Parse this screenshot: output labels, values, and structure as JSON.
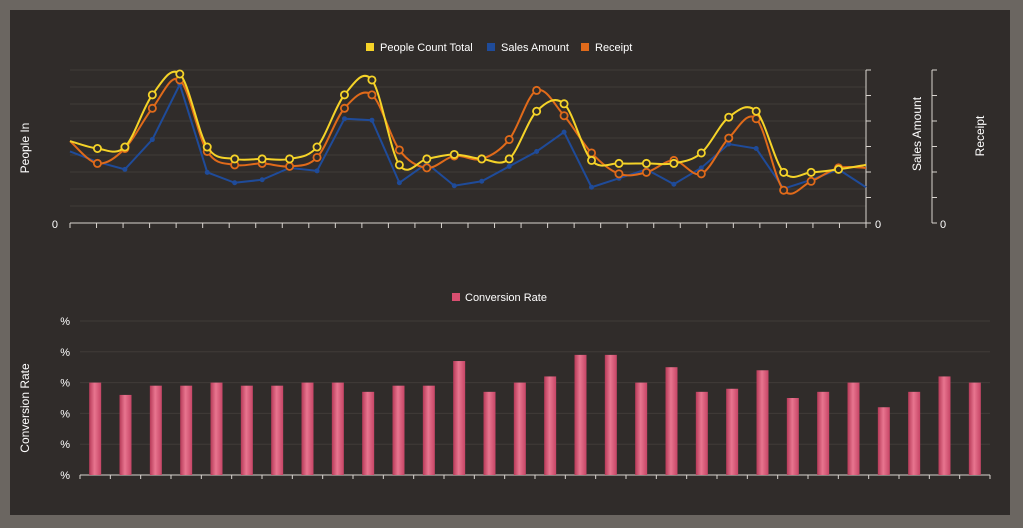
{
  "colors": {
    "background": "#302c2a",
    "frame": "#6b6661",
    "people": "#f5d328",
    "sales": "#1f4b99",
    "receipt": "#e06a1a",
    "conversion": "#d94f70"
  },
  "chart_data": [
    {
      "type": "line",
      "series": [
        {
          "name": "People Count Total",
          "color": "#f5d328",
          "values": [
            0.55,
            0.5,
            0.51,
            0.86,
            1.0,
            0.51,
            0.43,
            0.43,
            0.43,
            0.51,
            0.86,
            0.96,
            0.39,
            0.43,
            0.46,
            0.43,
            0.43,
            0.75,
            0.8,
            0.42,
            0.4,
            0.4,
            0.4,
            0.47,
            0.71,
            0.75,
            0.34,
            0.34,
            0.36,
            0.39
          ]
        },
        {
          "name": "Sales Amount",
          "color": "#1f4b99",
          "values": [
            0.48,
            0.41,
            0.36,
            0.56,
            0.93,
            0.34,
            0.27,
            0.29,
            0.37,
            0.35,
            0.7,
            0.69,
            0.27,
            0.4,
            0.25,
            0.28,
            0.38,
            0.48,
            0.61,
            0.24,
            0.3,
            0.36,
            0.26,
            0.37,
            0.53,
            0.5,
            0.23,
            0.29,
            0.36,
            0.24
          ]
        },
        {
          "name": "Receipt",
          "color": "#e06a1a",
          "values": [
            0.55,
            0.4,
            0.5,
            0.77,
            0.96,
            0.48,
            0.39,
            0.4,
            0.38,
            0.44,
            0.77,
            0.86,
            0.49,
            0.37,
            0.45,
            0.43,
            0.56,
            0.89,
            0.72,
            0.47,
            0.33,
            0.34,
            0.42,
            0.33,
            0.57,
            0.7,
            0.22,
            0.28,
            0.37,
            0.37
          ]
        }
      ],
      "ylabel_left": "People In",
      "ylabel_right": [
        "Sales Amount",
        "Receipt"
      ],
      "y_min_labels": [
        "0",
        "0",
        "0"
      ],
      "legend": "top-center"
    },
    {
      "type": "bar",
      "series": [
        {
          "name": "Conversion Rate",
          "color": "#d94f70",
          "values": [
            0.3,
            0.26,
            0.29,
            0.29,
            0.3,
            0.29,
            0.29,
            0.3,
            0.3,
            0.27,
            0.29,
            0.29,
            0.37,
            0.27,
            0.3,
            0.32,
            0.39,
            0.39,
            0.3,
            0.35,
            0.27,
            0.28,
            0.34,
            0.25,
            0.27,
            0.3,
            0.22,
            0.27,
            0.32,
            0.3
          ]
        }
      ],
      "ylabel": "Conversion Rate",
      "ytick_labels": [
        "%",
        "%",
        "%",
        "%",
        "%",
        "%"
      ],
      "legend": "top-center"
    }
  ]
}
